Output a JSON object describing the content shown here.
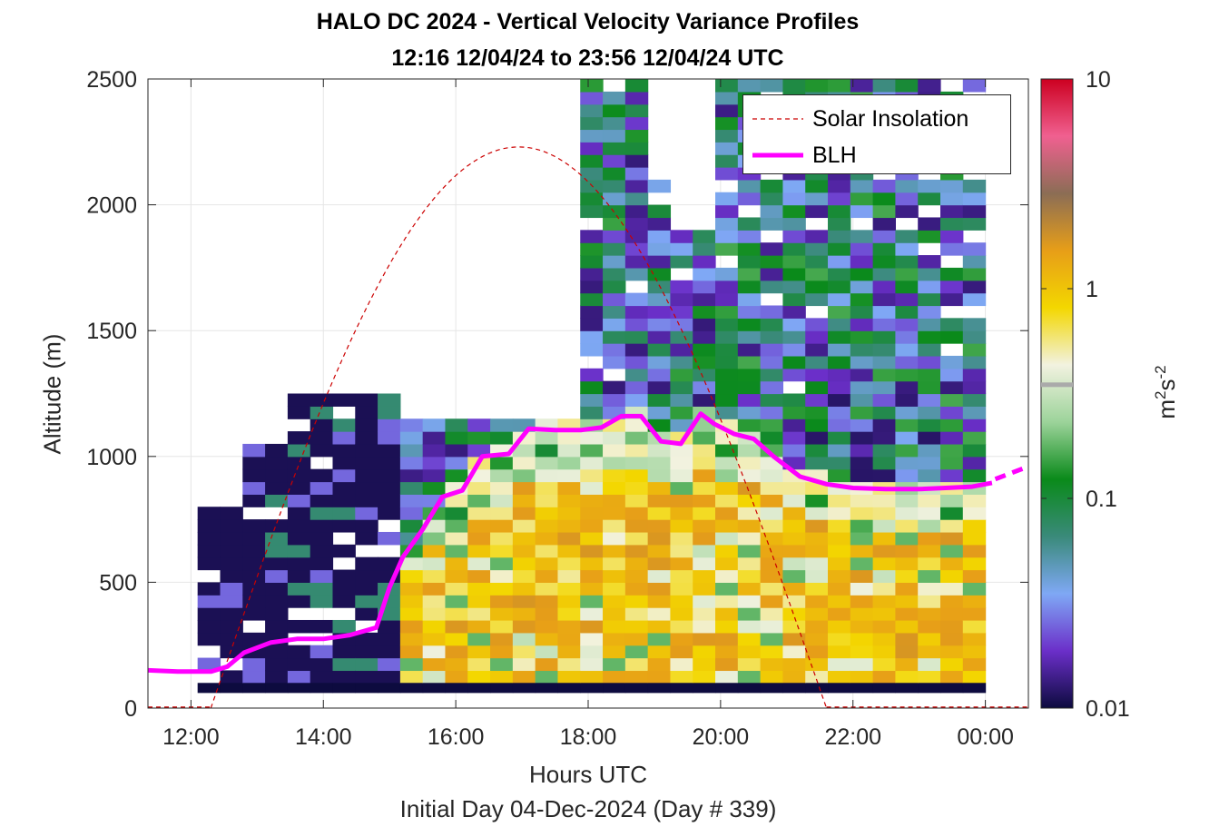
{
  "title_line1": "HALO DC 2024 - Vertical Velocity Variance Profiles",
  "title_line2": "12:16 12/04/24 to 23:56 12/04/24  UTC",
  "footer": "Initial Day 04-Dec-2024 (Day # 339)",
  "legend": [
    "Solar Insolation",
    "BLH"
  ],
  "colors": {
    "blh": "#ff00ff",
    "solar": "#cc0000",
    "axis": "#262626",
    "grid": "#e6e6e6"
  },
  "colorbar": {
    "label_base": "m",
    "label_sup1": "2",
    "label_mid": "s",
    "label_sup2": "-2",
    "ticks": [
      "0.01",
      "0.1",
      "1",
      "10"
    ],
    "scale": "log",
    "range": [
      0.01,
      10
    ],
    "stops": [
      "#0d0b3f",
      "#6b2fc9",
      "#7fa8f5",
      "#3a8a7a",
      "#0a8a1a",
      "#9cd39a",
      "#f2f2e0",
      "#f3d700",
      "#e79e18",
      "#8b6d55",
      "#f06090",
      "#cc0020"
    ]
  },
  "chart_data": {
    "type": "heatmap",
    "title": "HALO DC 2024 - Vertical Velocity Variance Profiles",
    "xlabel": "Hours UTC",
    "ylabel": "Altitude (m)",
    "xlim": [
      11.35,
      24.65
    ],
    "ylim": [
      0,
      2500
    ],
    "x_ticks": [
      "12:00",
      "14:00",
      "16:00",
      "18:00",
      "20:00",
      "22:00",
      "00:00"
    ],
    "y_ticks": [
      "0",
      "500",
      "1000",
      "1500",
      "2000",
      "2500"
    ],
    "grid": true,
    "legend_position": "top-right",
    "series": [
      {
        "name": "BLH",
        "x": [
          11.35,
          11.8,
          12.3,
          12.55,
          12.8,
          13.2,
          13.6,
          14.0,
          14.4,
          14.8,
          15.0,
          15.2,
          15.5,
          15.8,
          16.1,
          16.4,
          16.8,
          17.1,
          17.5,
          17.9,
          18.2,
          18.5,
          18.8,
          19.1,
          19.4,
          19.7,
          19.9,
          20.2,
          20.5,
          20.8,
          21.2,
          21.6,
          22.0,
          22.5,
          23.0,
          23.4,
          23.8,
          24.1
        ],
        "y": [
          150,
          145,
          145,
          165,
          220,
          260,
          275,
          275,
          290,
          320,
          480,
          600,
          710,
          840,
          865,
          1000,
          1010,
          1110,
          1105,
          1105,
          1115,
          1160,
          1160,
          1060,
          1050,
          1170,
          1130,
          1090,
          1070,
          1000,
          920,
          890,
          875,
          870,
          870,
          875,
          880,
          895
        ]
      },
      {
        "name": "BLH (extension)",
        "x": [
          24.15,
          24.65
        ],
        "y": [
          910,
          960
        ]
      },
      {
        "name": "Solar Insolation",
        "x": [
          12.3,
          16.95,
          21.6
        ],
        "y": [
          0,
          2230,
          0
        ]
      }
    ],
    "heatmap": {
      "x_start": 12.1,
      "x_end": 24.0,
      "columns": 35,
      "y_start": 100,
      "y_end": 2500,
      "rows": 48,
      "value_range": [
        0.01,
        10
      ],
      "description_regions": [
        {
          "x": [
            12.1,
            15.1
          ],
          "y": [
            100,
            1250
          ],
          "variance": 0.012
        },
        {
          "x": [
            15.1,
            24.0
          ],
          "y": [
            100,
            900
          ],
          "variance": 0.6
        },
        {
          "x": [
            17.8,
            24.0
          ],
          "y": [
            900,
            2500
          ],
          "variance": 0.05
        }
      ]
    }
  }
}
